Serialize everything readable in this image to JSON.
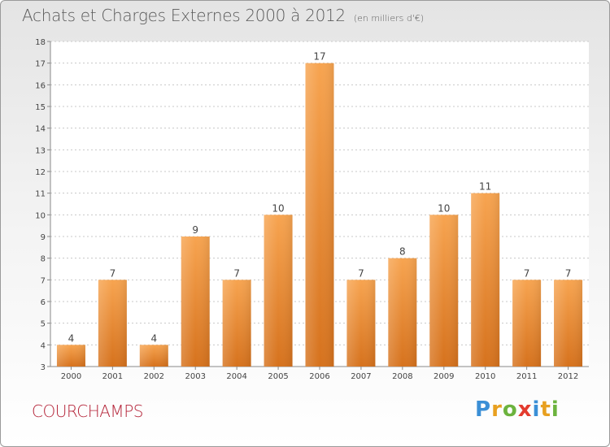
{
  "title": "Achats et Charges Externes 2000 à 2012",
  "unit": "(en milliers d'€)",
  "commune": "COURCHAMPS",
  "logo": {
    "text": "Proxiti"
  },
  "colors": {
    "bar_top": "#f7a450",
    "bar_bottom": "#d6721d",
    "title": "#5a5a5a",
    "commune": "#b5253a"
  },
  "chart_data": {
    "type": "bar",
    "categories": [
      "2000",
      "2001",
      "2002",
      "2003",
      "2004",
      "2005",
      "2006",
      "2007",
      "2008",
      "2009",
      "2010",
      "2011",
      "2012"
    ],
    "values": [
      4,
      7,
      4,
      9,
      7,
      10,
      17,
      7,
      8,
      10,
      11,
      7,
      7
    ],
    "data_labels": [
      "4",
      "7",
      "4",
      "9",
      "7",
      "10",
      "17",
      "7",
      "8",
      "10",
      "11",
      "7",
      "7"
    ],
    "ylim": [
      3,
      18
    ],
    "yticks": [
      "3",
      "4",
      "5",
      "6",
      "7",
      "8",
      "9",
      "10",
      "11",
      "12",
      "13",
      "14",
      "15",
      "16",
      "17",
      "18"
    ],
    "grid": true,
    "legend": "none"
  }
}
